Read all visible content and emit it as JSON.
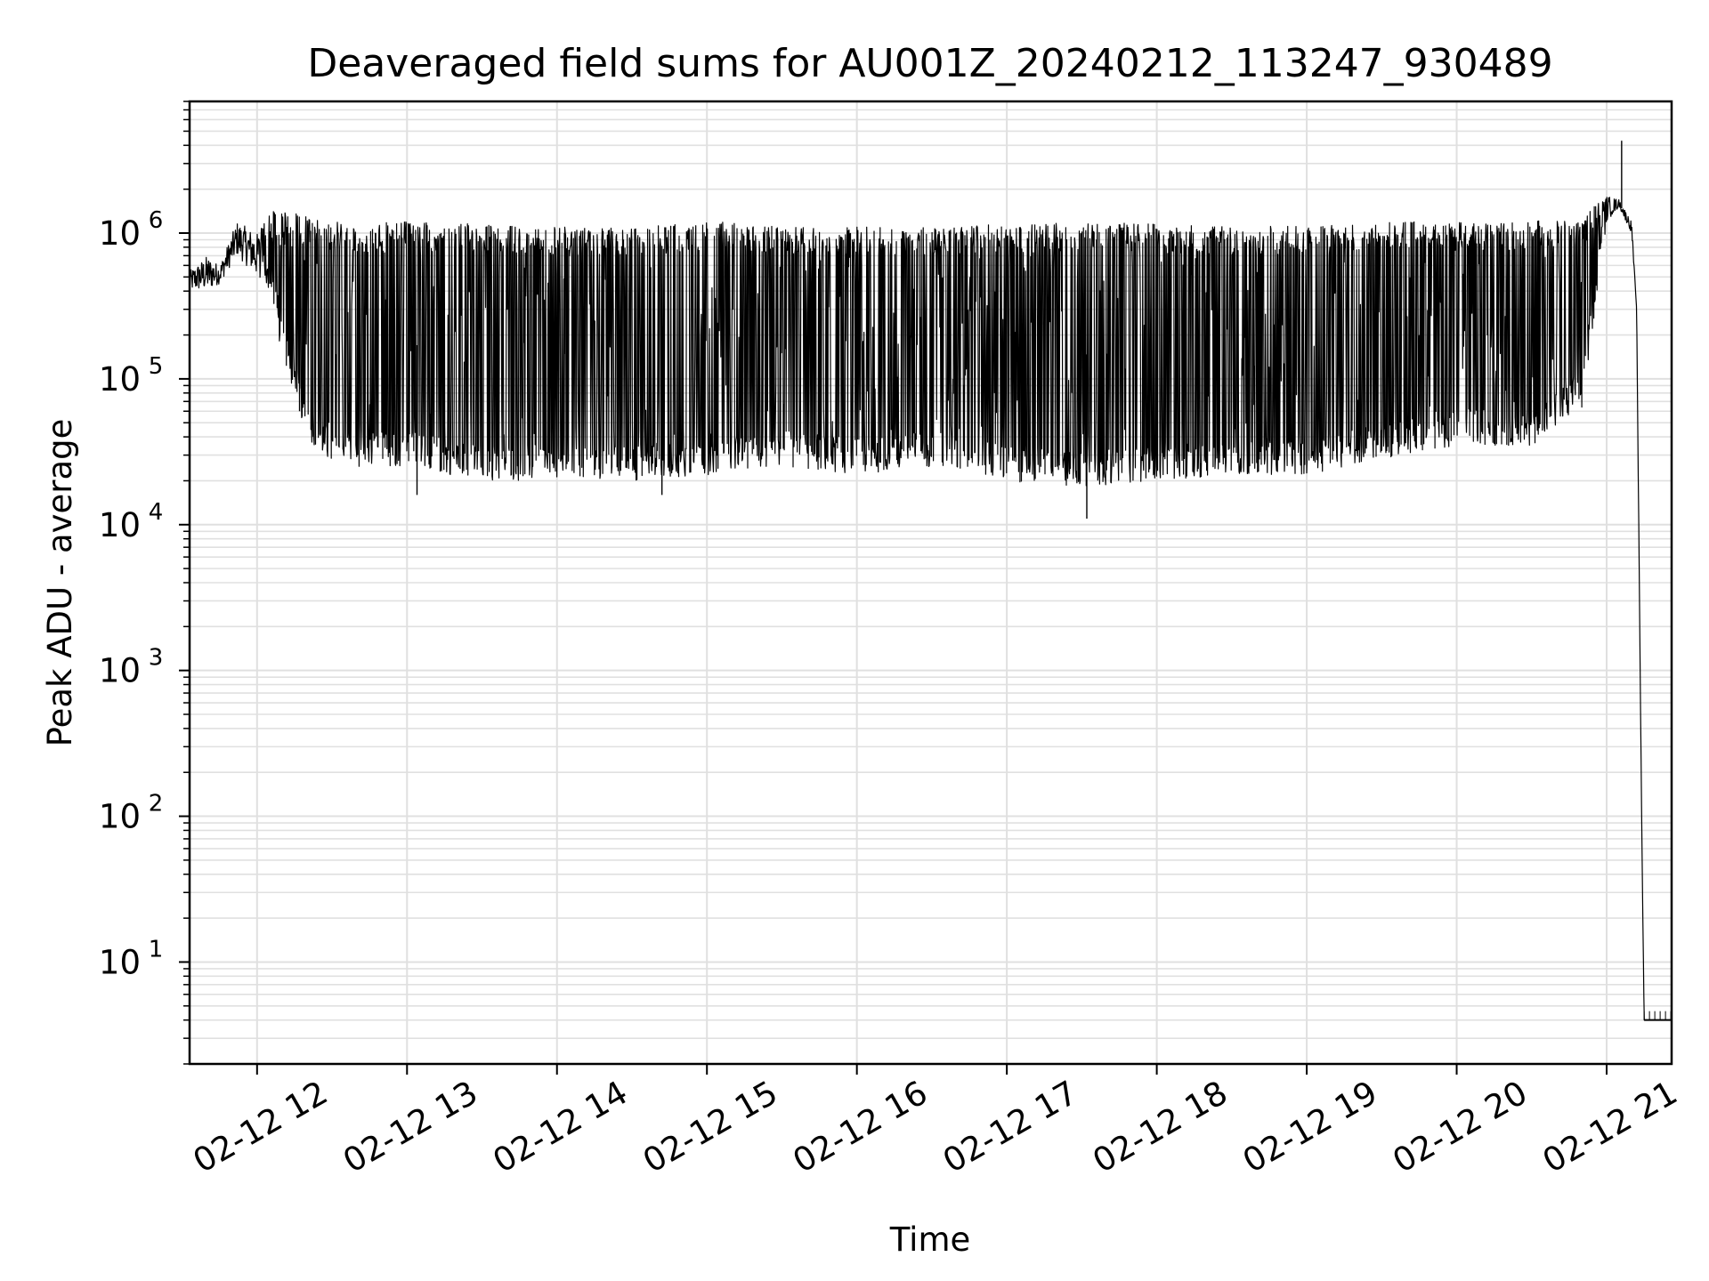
{
  "chart_data": {
    "type": "line",
    "title": "Deaveraged field sums for AU001Z_20240212_113247_930489",
    "xlabel": "Time",
    "ylabel": "Peak ADU - average",
    "y_scale": "log",
    "ylim": [
      2,
      8000000
    ],
    "xlim": [
      "2024-02-12 11:33",
      "2024-02-12 21:26"
    ],
    "grid": true,
    "line_color": "#000000",
    "grid_color": "#e0e0e0",
    "x_ticks": [
      {
        "value": "2024-02-12 12:00",
        "label": "02-12 12"
      },
      {
        "value": "2024-02-12 13:00",
        "label": "02-12 13"
      },
      {
        "value": "2024-02-12 14:00",
        "label": "02-12 14"
      },
      {
        "value": "2024-02-12 15:00",
        "label": "02-12 15"
      },
      {
        "value": "2024-02-12 16:00",
        "label": "02-12 16"
      },
      {
        "value": "2024-02-12 17:00",
        "label": "02-12 17"
      },
      {
        "value": "2024-02-12 18:00",
        "label": "02-12 18"
      },
      {
        "value": "2024-02-12 19:00",
        "label": "02-12 19"
      },
      {
        "value": "2024-02-12 20:00",
        "label": "02-12 20"
      },
      {
        "value": "2024-02-12 21:00",
        "label": "02-12 21"
      }
    ],
    "y_ticks": [
      {
        "value": 10,
        "base": "10",
        "exp": "1"
      },
      {
        "value": 100,
        "base": "10",
        "exp": "2"
      },
      {
        "value": 1000,
        "base": "10",
        "exp": "3"
      },
      {
        "value": 10000,
        "base": "10",
        "exp": "4"
      },
      {
        "value": 100000,
        "base": "10",
        "exp": "5"
      },
      {
        "value": 1000000,
        "base": "10",
        "exp": "6"
      }
    ],
    "envelope": {
      "x": [
        "11:33",
        "11:40",
        "11:45",
        "11:52",
        "12:00",
        "12:05",
        "12:10",
        "12:20",
        "12:30",
        "12:40",
        "13:00",
        "13:30",
        "14:00",
        "14:30",
        "15:00",
        "15:30",
        "16:00",
        "16:30",
        "17:00",
        "17:30",
        "18:00",
        "18:30",
        "19:00",
        "19:30",
        "20:00",
        "20:30",
        "20:50",
        "21:00",
        "21:05",
        "21:10",
        "21:12",
        "21:14",
        "21:15",
        "21:26"
      ],
      "upper": [
        550000,
        700000,
        600000,
        1200000,
        1000000,
        1400000,
        1500000,
        1300000,
        1200000,
        1150000,
        1200000,
        1150000,
        1100000,
        1100000,
        1200000,
        1150000,
        1100000,
        1100000,
        1150000,
        1200000,
        1150000,
        1100000,
        1150000,
        1200000,
        1200000,
        1200000,
        1300000,
        1800000,
        1700000,
        1200000,
        300000,
        100,
        4,
        4
      ],
      "lower": [
        400000,
        400000,
        450000,
        700000,
        500000,
        350000,
        150000,
        40000,
        25000,
        25000,
        25000,
        20000,
        20000,
        20000,
        22000,
        25000,
        22000,
        25000,
        20000,
        18000,
        20000,
        22000,
        22000,
        28000,
        35000,
        35000,
        60000,
        1200000,
        1500000,
        1000000,
        300000,
        100,
        4,
        4
      ]
    },
    "series": [
      {
        "x": "12:17",
        "y": 60000
      },
      {
        "x": "13:04",
        "y": 16000
      },
      {
        "x": "14:03",
        "y": 1000000
      },
      {
        "x": "14:42",
        "y": 16000
      },
      {
        "x": "17:32",
        "y": 11000
      },
      {
        "x": "21:06",
        "y": 4300000
      },
      {
        "x": "21:12",
        "y": 300000
      },
      {
        "x": "21:14",
        "y": 100
      },
      {
        "x": "21:15",
        "y": 4
      }
    ]
  }
}
